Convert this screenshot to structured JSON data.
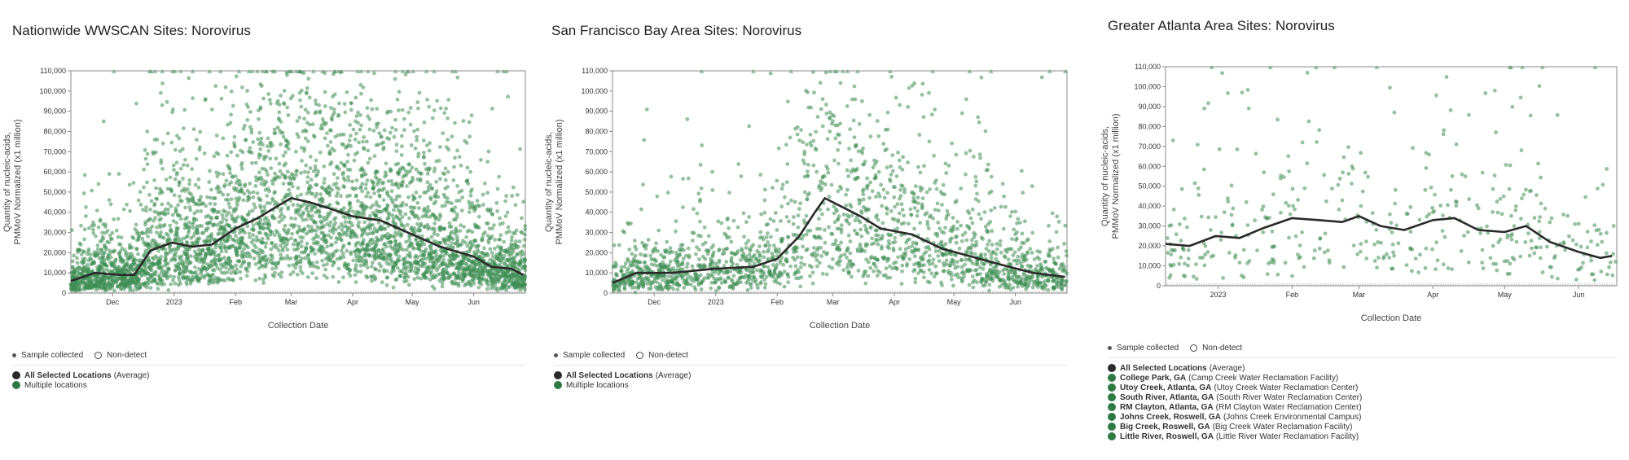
{
  "colors": {
    "sample": "#3e8e54",
    "average": "#2a2a2a",
    "location": "#2e7a44"
  },
  "legend_common": {
    "sample_label": "Sample collected",
    "nondetect_label": "Non-detect"
  },
  "chart_data": [
    {
      "type": "scatter",
      "title": "Nationwide WWSCAN Sites: Norovirus",
      "xlabel": "Collection Date",
      "ylabel": [
        "Quantity of nucleic-acids,",
        "PMMoV Normalized (x1 million)"
      ],
      "x_range": [
        "2022-11-10",
        "2023-06-27"
      ],
      "x_ticks": [
        {
          "date": "2022-12-01",
          "label": "Dec"
        },
        {
          "date": "2023-01-01",
          "label": "2023"
        },
        {
          "date": "2023-02-01",
          "label": "Feb"
        },
        {
          "date": "2023-03-01",
          "label": "Mar"
        },
        {
          "date": "2023-04-01",
          "label": "Apr"
        },
        {
          "date": "2023-05-01",
          "label": "May"
        },
        {
          "date": "2023-06-01",
          "label": "Jun"
        }
      ],
      "ylim": [
        0,
        110000
      ],
      "y_ticks": [
        0,
        10000,
        20000,
        30000,
        40000,
        50000,
        60000,
        70000,
        80000,
        90000,
        100000,
        110000
      ],
      "grid": false,
      "average_line": {
        "name": "All Selected Locations (Average)",
        "points": [
          [
            "2022-11-10",
            6000
          ],
          [
            "2022-11-22",
            10000
          ],
          [
            "2022-12-05",
            9000
          ],
          [
            "2022-12-12",
            9000
          ],
          [
            "2022-12-20",
            21000
          ],
          [
            "2022-12-31",
            25000
          ],
          [
            "2023-01-10",
            23000
          ],
          [
            "2023-01-20",
            24000
          ],
          [
            "2023-02-01",
            32000
          ],
          [
            "2023-02-12",
            37000
          ],
          [
            "2023-02-22",
            43000
          ],
          [
            "2023-03-01",
            47000
          ],
          [
            "2023-03-10",
            45000
          ],
          [
            "2023-03-20",
            42000
          ],
          [
            "2023-04-01",
            38000
          ],
          [
            "2023-04-15",
            36000
          ],
          [
            "2023-05-01",
            29000
          ],
          [
            "2023-05-15",
            23000
          ],
          [
            "2023-06-01",
            18000
          ],
          [
            "2023-06-10",
            13000
          ],
          [
            "2023-06-20",
            12000
          ],
          [
            "2023-06-26",
            9000
          ]
        ]
      },
      "point_density": 4200,
      "ceiling_marker_density": 0.55,
      "legend_locations": [
        {
          "name": "All Selected Locations",
          "detail": "(Average)",
          "color": "#2a2a2a"
        },
        {
          "name": "",
          "detail": "Multiple locations",
          "color": "#2e7a44"
        }
      ]
    },
    {
      "type": "scatter",
      "title": "San Francisco Bay Area Sites: Norovirus",
      "xlabel": "Collection Date",
      "ylabel": [
        "Quantity of nucleic-acids,",
        "PMMoV Normalized (x1 million)"
      ],
      "x_range": [
        "2022-11-10",
        "2023-06-27"
      ],
      "x_ticks": [
        {
          "date": "2022-12-01",
          "label": "Dec"
        },
        {
          "date": "2023-01-01",
          "label": "2023"
        },
        {
          "date": "2023-02-01",
          "label": "Feb"
        },
        {
          "date": "2023-03-01",
          "label": "Mar"
        },
        {
          "date": "2023-04-01",
          "label": "Apr"
        },
        {
          "date": "2023-05-01",
          "label": "May"
        },
        {
          "date": "2023-06-01",
          "label": "Jun"
        }
      ],
      "ylim": [
        0,
        110000
      ],
      "y_ticks": [
        0,
        10000,
        20000,
        30000,
        40000,
        50000,
        60000,
        70000,
        80000,
        90000,
        100000,
        110000
      ],
      "grid": false,
      "average_line": {
        "name": "All Selected Locations (Average)",
        "points": [
          [
            "2022-11-10",
            5000
          ],
          [
            "2022-11-22",
            10000
          ],
          [
            "2022-12-10",
            10000
          ],
          [
            "2022-12-31",
            12000
          ],
          [
            "2023-01-20",
            13000
          ],
          [
            "2023-02-01",
            17000
          ],
          [
            "2023-02-12",
            28000
          ],
          [
            "2023-02-20",
            40000
          ],
          [
            "2023-02-25",
            47000
          ],
          [
            "2023-03-05",
            43000
          ],
          [
            "2023-03-15",
            38000
          ],
          [
            "2023-03-25",
            32000
          ],
          [
            "2023-04-10",
            29000
          ],
          [
            "2023-04-25",
            22000
          ],
          [
            "2023-05-10",
            18000
          ],
          [
            "2023-05-25",
            14000
          ],
          [
            "2023-06-10",
            10000
          ],
          [
            "2023-06-26",
            8000
          ]
        ]
      },
      "point_density": 2000,
      "ceiling_marker_density": 0.25,
      "legend_locations": [
        {
          "name": "All Selected Locations",
          "detail": "(Average)",
          "color": "#2a2a2a"
        },
        {
          "name": "",
          "detail": "Multiple locations",
          "color": "#2e7a44"
        }
      ]
    },
    {
      "type": "scatter",
      "title": "Greater Atlanta Area Sites: Norovirus",
      "xlabel": "Collection Date",
      "ylabel": [
        "Quantity of nucleic-acids,",
        "PMMoV Normalized (x1 million)"
      ],
      "x_range": [
        "2022-12-10",
        "2023-06-17"
      ],
      "x_ticks": [
        {
          "date": "2023-01-01",
          "label": "2023"
        },
        {
          "date": "2023-02-01",
          "label": "Feb"
        },
        {
          "date": "2023-03-01",
          "label": "Mar"
        },
        {
          "date": "2023-04-01",
          "label": "Apr"
        },
        {
          "date": "2023-05-01",
          "label": "May"
        },
        {
          "date": "2023-06-01",
          "label": "Jun"
        }
      ],
      "ylim": [
        0,
        110000
      ],
      "y_ticks": [
        0,
        10000,
        20000,
        30000,
        40000,
        50000,
        60000,
        70000,
        80000,
        90000,
        100000,
        110000
      ],
      "grid": false,
      "average_line": {
        "name": "All Selected Locations (Average)",
        "points": [
          [
            "2022-12-10",
            21000
          ],
          [
            "2022-12-20",
            20000
          ],
          [
            "2022-12-31",
            25000
          ],
          [
            "2023-01-10",
            24000
          ],
          [
            "2023-01-20",
            29000
          ],
          [
            "2023-02-01",
            34000
          ],
          [
            "2023-02-12",
            33000
          ],
          [
            "2023-02-22",
            32000
          ],
          [
            "2023-03-01",
            35000
          ],
          [
            "2023-03-10",
            30000
          ],
          [
            "2023-03-20",
            28000
          ],
          [
            "2023-04-01",
            33000
          ],
          [
            "2023-04-10",
            34000
          ],
          [
            "2023-04-20",
            28000
          ],
          [
            "2023-05-01",
            27000
          ],
          [
            "2023-05-10",
            30000
          ],
          [
            "2023-05-20",
            22000
          ],
          [
            "2023-06-01",
            17000
          ],
          [
            "2023-06-10",
            14000
          ],
          [
            "2023-06-15",
            15000
          ]
        ]
      },
      "point_density": 420,
      "ceiling_marker_density": 0.12,
      "legend_locations": [
        {
          "name": "All Selected Locations",
          "detail": "(Average)",
          "color": "#2a2a2a"
        },
        {
          "name": "College Park, GA",
          "detail": "(Camp Creek Water Reclamation Facility)",
          "color": "#2e7a44"
        },
        {
          "name": "Utoy Creek, Atlanta, GA",
          "detail": "(Utoy Creek Water Reclamation Center)",
          "color": "#2e7a44"
        },
        {
          "name": "South River, Atlanta, GA",
          "detail": "(South River Water Reclamation Center)",
          "color": "#2e7a44"
        },
        {
          "name": "RM Clayton, Atlanta, GA",
          "detail": "(RM Clayton Water Reclamation Center)",
          "color": "#2e7a44"
        },
        {
          "name": "Johns Creek, Roswell, GA",
          "detail": "(Johns Creek Environmental Campus)",
          "color": "#2e7a44"
        },
        {
          "name": "Big Creek, Roswell, GA",
          "detail": "(Big Creek Water Reclamation Facility)",
          "color": "#2e7a44"
        },
        {
          "name": "Little River, Roswell, GA",
          "detail": "(Little River Water Reclamation Facility)",
          "color": "#2e7a44"
        }
      ]
    }
  ]
}
